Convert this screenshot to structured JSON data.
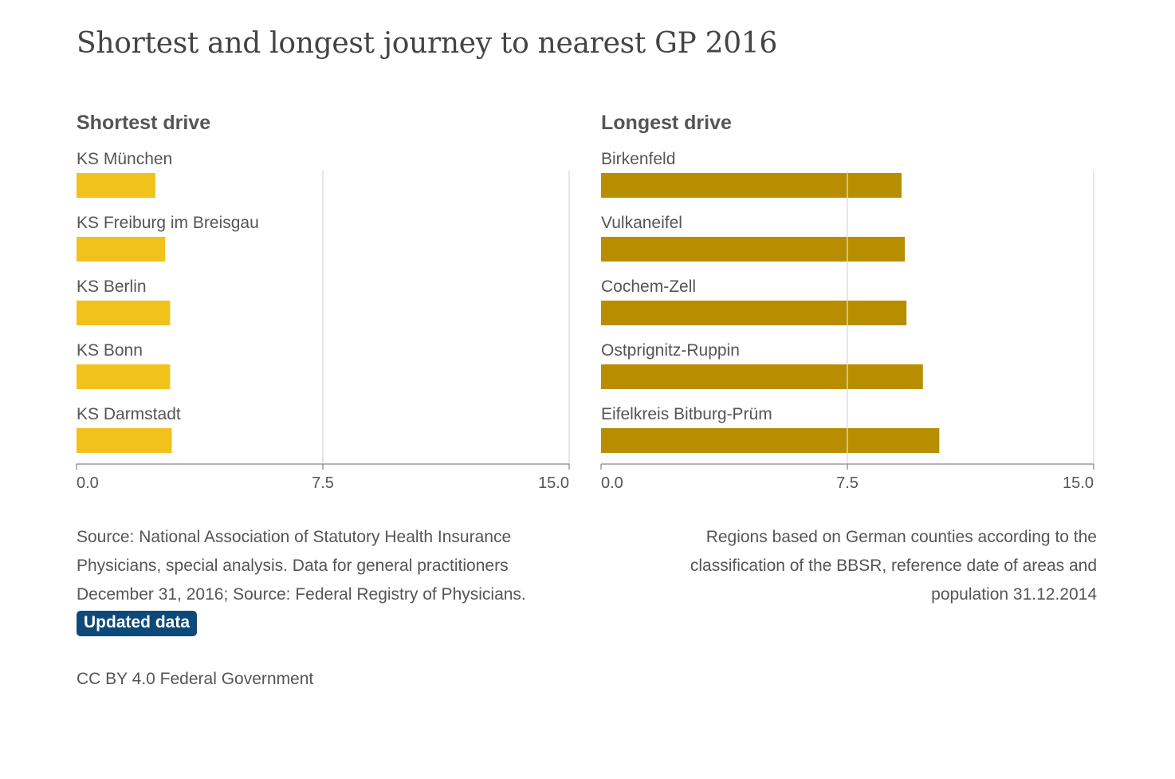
{
  "title": "Shortest and longest journey to nearest GP 2016",
  "colors": {
    "short_bar": "#f0c21b",
    "long_bar": "#b98d00",
    "grid": "#d9d9d9",
    "axis": "#9a9a9a",
    "text": "#555555",
    "badge": "#0d4a7a"
  },
  "chart_data": [
    {
      "type": "bar",
      "orientation": "horizontal",
      "title": "Shortest drive",
      "categories": [
        "KS München",
        "KS Freiburg im Breisgau",
        "KS Berlin",
        "KS Bonn",
        "KS Darmstadt"
      ],
      "values": [
        2.4,
        2.7,
        2.85,
        2.85,
        2.9
      ],
      "xlim": [
        0,
        15
      ],
      "xticks": [
        "0.0",
        "7.5",
        "15.0"
      ],
      "grid": true
    },
    {
      "type": "bar",
      "orientation": "horizontal",
      "title": "Longest drive",
      "categories": [
        "Birkenfeld",
        "Vulkaneifel",
        "Cochem-Zell",
        "Ostprignitz-Ruppin",
        "Eifelkreis Bitburg-Prüm"
      ],
      "values": [
        9.15,
        9.25,
        9.3,
        9.8,
        10.3
      ],
      "xlim": [
        0,
        15
      ],
      "xticks": [
        "0.0",
        "7.5",
        "15.0"
      ],
      "grid": true
    }
  ],
  "footer": {
    "source": "Source: National Association of Statutory Health Insurance Physicians, special analysis. Data for general practitioners December 31, 2016; Source: Federal Registry of Physicians.",
    "note": "Regions based on German counties according to the classification of the BBSR, reference date of areas and population 31.12.2014",
    "badge": "Updated data",
    "license": "CC BY 4.0 Federal Government"
  }
}
